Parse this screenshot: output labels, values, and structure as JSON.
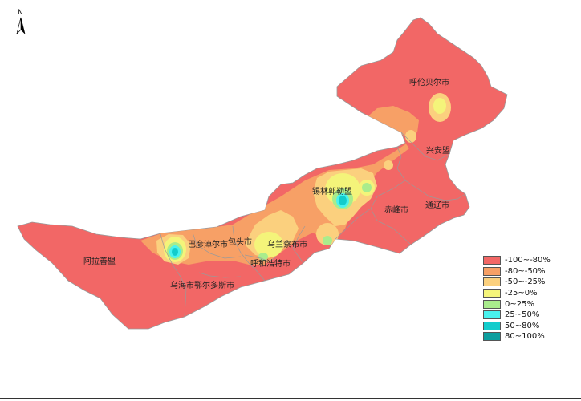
{
  "north_arrow": {
    "label": "N"
  },
  "cities": [
    {
      "name": "呼伦贝尔市",
      "id": "hulunbuir"
    },
    {
      "name": "兴安盟",
      "id": "xinganmeng"
    },
    {
      "name": "锡林郭勒盟",
      "id": "xilinguole"
    },
    {
      "name": "通辽市",
      "id": "tongliao"
    },
    {
      "name": "赤峰市",
      "id": "chifeng"
    },
    {
      "name": "乌兰察布市",
      "id": "wulanchabu"
    },
    {
      "name": "巴彦淖尔市",
      "id": "bayannaoer"
    },
    {
      "name": "包头市",
      "id": "baotou"
    },
    {
      "name": "呼和浩特市",
      "id": "huhehaote"
    },
    {
      "name": "阿拉善盟",
      "id": "alashan"
    },
    {
      "name": "乌海市鄂尔多斯市",
      "id": "wuhai-eerduosi"
    }
  ],
  "legend": {
    "items": [
      {
        "label": "-100~-80%",
        "color": "#f26766"
      },
      {
        "label": "-80~-50%",
        "color": "#f7a066"
      },
      {
        "label": "-50~-25%",
        "color": "#fbd07e"
      },
      {
        "label": "-25~0%",
        "color": "#f4f47a"
      },
      {
        "label": "0~25%",
        "color": "#a9ec8c"
      },
      {
        "label": "25~50%",
        "color": "#49f2ee"
      },
      {
        "label": "50~80%",
        "color": "#12cccc"
      },
      {
        "label": "80~100%",
        "color": "#0d9e9e"
      }
    ]
  }
}
